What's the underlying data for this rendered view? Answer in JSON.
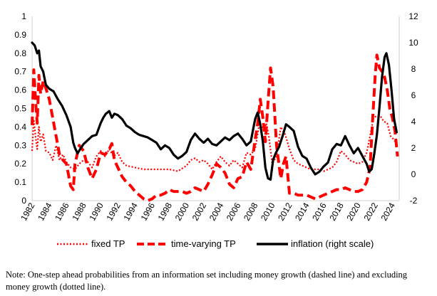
{
  "chart_data": {
    "type": "line",
    "x_label": "",
    "y_label_left": "",
    "y_label_right": "",
    "x_range": [
      1982,
      2024.8
    ],
    "ylim_left": [
      0,
      1
    ],
    "ylim_right": [
      -2,
      12
    ],
    "left_ticks": [
      "0",
      "0.1",
      "0.2",
      "0.3",
      "0.4",
      "0.5",
      "0.6",
      "0.7",
      "0.8",
      "0.9",
      "1"
    ],
    "right_ticks": [
      "-2",
      "0",
      "2",
      "4",
      "6",
      "8",
      "10",
      "12"
    ],
    "x_ticks": [
      "1982",
      "1984",
      "1986",
      "1988",
      "1990",
      "1992",
      "1994",
      "1996",
      "1998",
      "2000",
      "2002",
      "2004",
      "2006",
      "2008",
      "2010",
      "2012",
      "2014",
      "2016",
      "2018",
      "2020",
      "2022",
      "2024"
    ],
    "grid": false,
    "legend_position": "bottom",
    "series": [
      {
        "name": "fixed TP",
        "style": "dotted",
        "color": "#ff0000",
        "axis": "left",
        "x": [
          1982.0,
          1982.2,
          1982.4,
          1982.6,
          1982.8,
          1983.0,
          1983.3,
          1983.6,
          1984.0,
          1984.4,
          1984.8,
          1985.2,
          1985.6,
          1986.0,
          1986.5,
          1987.0,
          1987.5,
          1988.0,
          1988.5,
          1989.0,
          1989.5,
          1990.0,
          1990.5,
          1991.0,
          1991.5,
          1992.0,
          1992.5,
          1993.0,
          1994.0,
          1995.0,
          1996.0,
          1997.0,
          1998.0,
          1999.0,
          2000.0,
          2000.5,
          2001.0,
          2001.5,
          2002.0,
          2002.5,
          2003.0,
          2003.5,
          2004.0,
          2004.5,
          2005.0,
          2005.5,
          2006.0,
          2006.5,
          2007.0,
          2007.5,
          2008.0,
          2008.5,
          2009.0,
          2009.3,
          2009.6,
          2010.0,
          2010.5,
          2011.0,
          2011.5,
          2012.0,
          2012.5,
          2013.0,
          2013.5,
          2014.0,
          2014.5,
          2015.0,
          2015.5,
          2016.0,
          2016.5,
          2017.0,
          2017.5,
          2018.0,
          2018.5,
          2019.0,
          2019.5,
          2020.0,
          2020.5,
          2021.0,
          2021.4,
          2021.8,
          2022.2,
          2022.6,
          2023.0,
          2023.4,
          2023.8,
          2024.2,
          2024.6
        ],
        "y": [
          0.27,
          0.44,
          0.35,
          0.28,
          0.4,
          0.32,
          0.36,
          0.27,
          0.26,
          0.22,
          0.3,
          0.22,
          0.25,
          0.21,
          0.18,
          0.17,
          0.2,
          0.22,
          0.21,
          0.18,
          0.24,
          0.27,
          0.24,
          0.28,
          0.24,
          0.26,
          0.21,
          0.19,
          0.18,
          0.17,
          0.17,
          0.17,
          0.17,
          0.16,
          0.19,
          0.22,
          0.23,
          0.21,
          0.22,
          0.2,
          0.17,
          0.21,
          0.24,
          0.21,
          0.19,
          0.22,
          0.2,
          0.18,
          0.26,
          0.25,
          0.28,
          0.42,
          0.38,
          0.42,
          0.35,
          0.2,
          0.24,
          0.4,
          0.36,
          0.28,
          0.22,
          0.2,
          0.19,
          0.18,
          0.17,
          0.17,
          0.17,
          0.16,
          0.17,
          0.18,
          0.21,
          0.27,
          0.25,
          0.22,
          0.21,
          0.2,
          0.21,
          0.26,
          0.35,
          0.45,
          0.46,
          0.46,
          0.43,
          0.42,
          0.35,
          0.33,
          0.3
        ]
      },
      {
        "name": "time-varying TP",
        "style": "dashed",
        "color": "#ff0000",
        "axis": "left",
        "x": [
          1982.0,
          1982.2,
          1982.4,
          1982.6,
          1982.8,
          1983.0,
          1983.3,
          1983.6,
          1984.0,
          1984.4,
          1984.8,
          1985.2,
          1985.6,
          1986.0,
          1986.5,
          1986.8,
          1987.0,
          1987.5,
          1988.0,
          1988.5,
          1989.0,
          1989.5,
          1990.0,
          1990.5,
          1991.0,
          1991.3,
          1991.6,
          1992.0,
          1992.5,
          1993.0,
          1993.5,
          1994.0,
          1994.5,
          1995.0,
          1995.5,
          1996.0,
          1996.5,
          1997.0,
          1997.5,
          1998.0,
          1998.5,
          1999.0,
          1999.5,
          2000.0,
          2000.5,
          2001.0,
          2001.5,
          2002.0,
          2002.5,
          2003.0,
          2003.5,
          2004.0,
          2004.5,
          2005.0,
          2005.5,
          2006.0,
          2006.5,
          2007.0,
          2007.5,
          2008.0,
          2008.3,
          2008.6,
          2008.9,
          2009.2,
          2009.5,
          2009.8,
          2010.1,
          2010.5,
          2011.0,
          2011.3,
          2011.6,
          2012.0,
          2012.5,
          2013.0,
          2013.5,
          2014.0,
          2014.5,
          2015.0,
          2015.5,
          2016.0,
          2016.5,
          2017.0,
          2017.5,
          2018.0,
          2018.5,
          2019.0,
          2019.5,
          2020.0,
          2020.5,
          2021.0,
          2021.4,
          2021.7,
          2022.0,
          2022.2,
          2022.5,
          2022.8,
          2023.1,
          2023.4,
          2023.7,
          2024.0,
          2024.3,
          2024.6
        ],
        "y": [
          0.41,
          0.71,
          0.55,
          0.42,
          0.68,
          0.58,
          0.65,
          0.61,
          0.55,
          0.45,
          0.35,
          0.25,
          0.22,
          0.2,
          0.08,
          0.06,
          0.2,
          0.3,
          0.27,
          0.18,
          0.12,
          0.17,
          0.26,
          0.25,
          0.28,
          0.31,
          0.22,
          0.18,
          0.13,
          0.1,
          0.08,
          0.05,
          0.03,
          0.01,
          0.0,
          0.01,
          0.03,
          0.03,
          0.04,
          0.06,
          0.05,
          0.05,
          0.05,
          0.04,
          0.05,
          0.07,
          0.06,
          0.05,
          0.09,
          0.14,
          0.2,
          0.18,
          0.15,
          0.09,
          0.07,
          0.12,
          0.13,
          0.21,
          0.17,
          0.33,
          0.42,
          0.55,
          0.45,
          0.32,
          0.53,
          0.72,
          0.62,
          0.3,
          0.12,
          0.2,
          0.24,
          0.04,
          0.04,
          0.03,
          0.03,
          0.03,
          0.02,
          0.01,
          0.02,
          0.03,
          0.04,
          0.05,
          0.06,
          0.06,
          0.07,
          0.06,
          0.05,
          0.05,
          0.06,
          0.1,
          0.18,
          0.44,
          0.68,
          0.79,
          0.72,
          0.7,
          0.67,
          0.6,
          0.5,
          0.45,
          0.38,
          0.24
        ]
      },
      {
        "name": "inflation (right scale)",
        "style": "solid",
        "color": "#000000",
        "axis": "right",
        "x": [
          1982.0,
          1982.3,
          1982.6,
          1982.8,
          1983.0,
          1983.3,
          1983.6,
          1984.0,
          1984.5,
          1985.0,
          1985.5,
          1986.0,
          1986.5,
          1986.8,
          1987.0,
          1987.3,
          1987.6,
          1988.0,
          1988.5,
          1989.0,
          1989.5,
          1990.0,
          1990.3,
          1990.6,
          1991.0,
          1991.3,
          1991.6,
          1992.0,
          1992.5,
          1993.0,
          1993.5,
          1994.0,
          1994.5,
          1995.0,
          1995.5,
          1996.0,
          1996.5,
          1997.0,
          1997.5,
          1998.0,
          1998.5,
          1999.0,
          1999.5,
          2000.0,
          2000.5,
          2001.0,
          2001.5,
          2002.0,
          2002.5,
          2003.0,
          2003.5,
          2004.0,
          2004.5,
          2005.0,
          2005.5,
          2006.0,
          2006.5,
          2007.0,
          2007.5,
          2008.0,
          2008.3,
          2008.6,
          2008.9,
          2009.2,
          2009.5,
          2009.8,
          2010.1,
          2010.4,
          2010.8,
          2011.2,
          2011.6,
          2012.0,
          2012.5,
          2013.0,
          2013.5,
          2014.0,
          2014.5,
          2015.0,
          2015.5,
          2016.0,
          2016.5,
          2017.0,
          2017.5,
          2018.0,
          2018.5,
          2019.0,
          2019.5,
          2020.0,
          2020.5,
          2021.0,
          2021.3,
          2021.6,
          2021.9,
          2022.2,
          2022.5,
          2022.8,
          2023.1,
          2023.3,
          2023.6,
          2023.9,
          2024.2,
          2024.5
        ],
        "y": [
          10.0,
          9.8,
          9.2,
          9.4,
          8.2,
          7.8,
          6.8,
          6.5,
          6.3,
          5.7,
          5.2,
          4.5,
          3.6,
          2.4,
          2.0,
          1.6,
          1.9,
          2.3,
          2.6,
          2.9,
          3.0,
          3.9,
          4.3,
          4.6,
          4.8,
          4.3,
          4.6,
          4.5,
          4.2,
          3.7,
          3.5,
          3.2,
          3.0,
          2.9,
          2.8,
          2.6,
          2.4,
          1.9,
          2.2,
          2.0,
          1.5,
          1.2,
          1.4,
          1.7,
          2.6,
          3.1,
          2.7,
          2.4,
          2.7,
          2.3,
          2.2,
          2.5,
          2.8,
          2.6,
          2.9,
          3.1,
          2.7,
          2.2,
          2.5,
          4.2,
          4.7,
          3.8,
          2.5,
          0.5,
          -0.3,
          -0.4,
          1.1,
          1.6,
          2.1,
          2.9,
          3.8,
          3.6,
          3.3,
          2.1,
          1.4,
          1.2,
          0.5,
          0.0,
          0.2,
          0.6,
          0.9,
          1.9,
          2.3,
          2.2,
          2.9,
          2.2,
          1.6,
          2.0,
          1.4,
          0.8,
          0.2,
          0.4,
          1.6,
          3.0,
          5.1,
          7.4,
          8.9,
          9.2,
          8.3,
          6.4,
          4.2,
          3.2
        ]
      }
    ]
  },
  "note": "Note: One-step ahead probabilities from an information set including money growth (dashed line) and excluding money growth (dotted line)."
}
